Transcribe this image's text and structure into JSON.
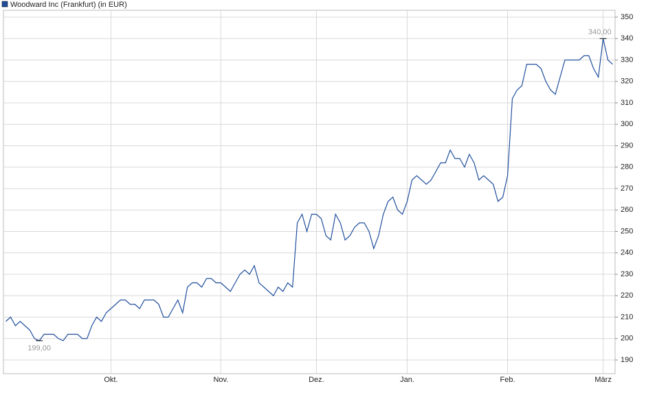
{
  "chart_data": {
    "type": "line",
    "categories": [
      null,
      null,
      null,
      null,
      null,
      null,
      null,
      null,
      null,
      null,
      null,
      null,
      null,
      null,
      null,
      null,
      null,
      null,
      null,
      null,
      null,
      null,
      "Okt.",
      null,
      null,
      null,
      null,
      null,
      null,
      null,
      null,
      null,
      null,
      null,
      null,
      null,
      null,
      null,
      null,
      null,
      null,
      null,
      null,
      null,
      null,
      "Nov.",
      null,
      null,
      null,
      null,
      null,
      null,
      null,
      null,
      null,
      null,
      null,
      null,
      null,
      null,
      null,
      null,
      null,
      null,
      null,
      "Dez.",
      null,
      null,
      null,
      null,
      null,
      null,
      null,
      null,
      null,
      null,
      null,
      null,
      null,
      null,
      null,
      null,
      null,
      null,
      "Jan.",
      null,
      null,
      null,
      null,
      null,
      null,
      null,
      null,
      null,
      null,
      null,
      null,
      null,
      null,
      null,
      null,
      null,
      null,
      null,
      null,
      "Feb.",
      null,
      null,
      null,
      null,
      null,
      null,
      null,
      null,
      null,
      null,
      null,
      null,
      null,
      null,
      null,
      null,
      null,
      null,
      null,
      "März",
      null,
      null
    ],
    "series": [
      {
        "name": "Woodward Inc (Frankfurt) (in EUR)",
        "color": "#1f4e9c",
        "values": [
          208,
          210,
          206,
          208,
          206,
          204,
          200,
          199,
          202,
          202,
          202,
          200,
          199,
          202,
          202,
          202,
          200,
          200,
          206,
          210,
          208,
          212,
          214,
          216,
          218,
          218,
          216,
          216,
          214,
          218,
          218,
          218,
          216,
          210,
          210,
          214,
          218,
          212,
          224,
          226,
          226,
          224,
          228,
          228,
          226,
          226,
          224,
          222,
          226,
          230,
          232,
          230,
          234,
          226,
          224,
          222,
          220,
          224,
          222,
          226,
          224,
          254,
          258,
          250,
          258,
          258,
          256,
          248,
          246,
          258,
          254,
          246,
          248,
          252,
          254,
          254,
          250,
          242,
          248,
          258,
          264,
          266,
          260,
          258,
          264,
          274,
          276,
          274,
          272,
          274,
          278,
          282,
          282,
          288,
          284,
          284,
          280,
          286,
          282,
          274,
          276,
          274,
          272,
          264,
          266,
          276,
          312,
          316,
          318,
          328,
          328,
          328,
          326,
          320,
          316,
          314,
          322,
          330,
          330,
          330,
          330,
          332,
          332,
          326,
          322,
          340,
          330,
          328
        ]
      }
    ],
    "annotations": [
      {
        "text": "199,00",
        "value": 199
      },
      {
        "text": "340,00",
        "value": 340
      }
    ],
    "ylim": [
      183.6,
      353.2
    ],
    "yticks": [
      190,
      200,
      210,
      220,
      230,
      240,
      250,
      260,
      270,
      280,
      290,
      300,
      310,
      320,
      330,
      340,
      350
    ],
    "grid": true
  }
}
